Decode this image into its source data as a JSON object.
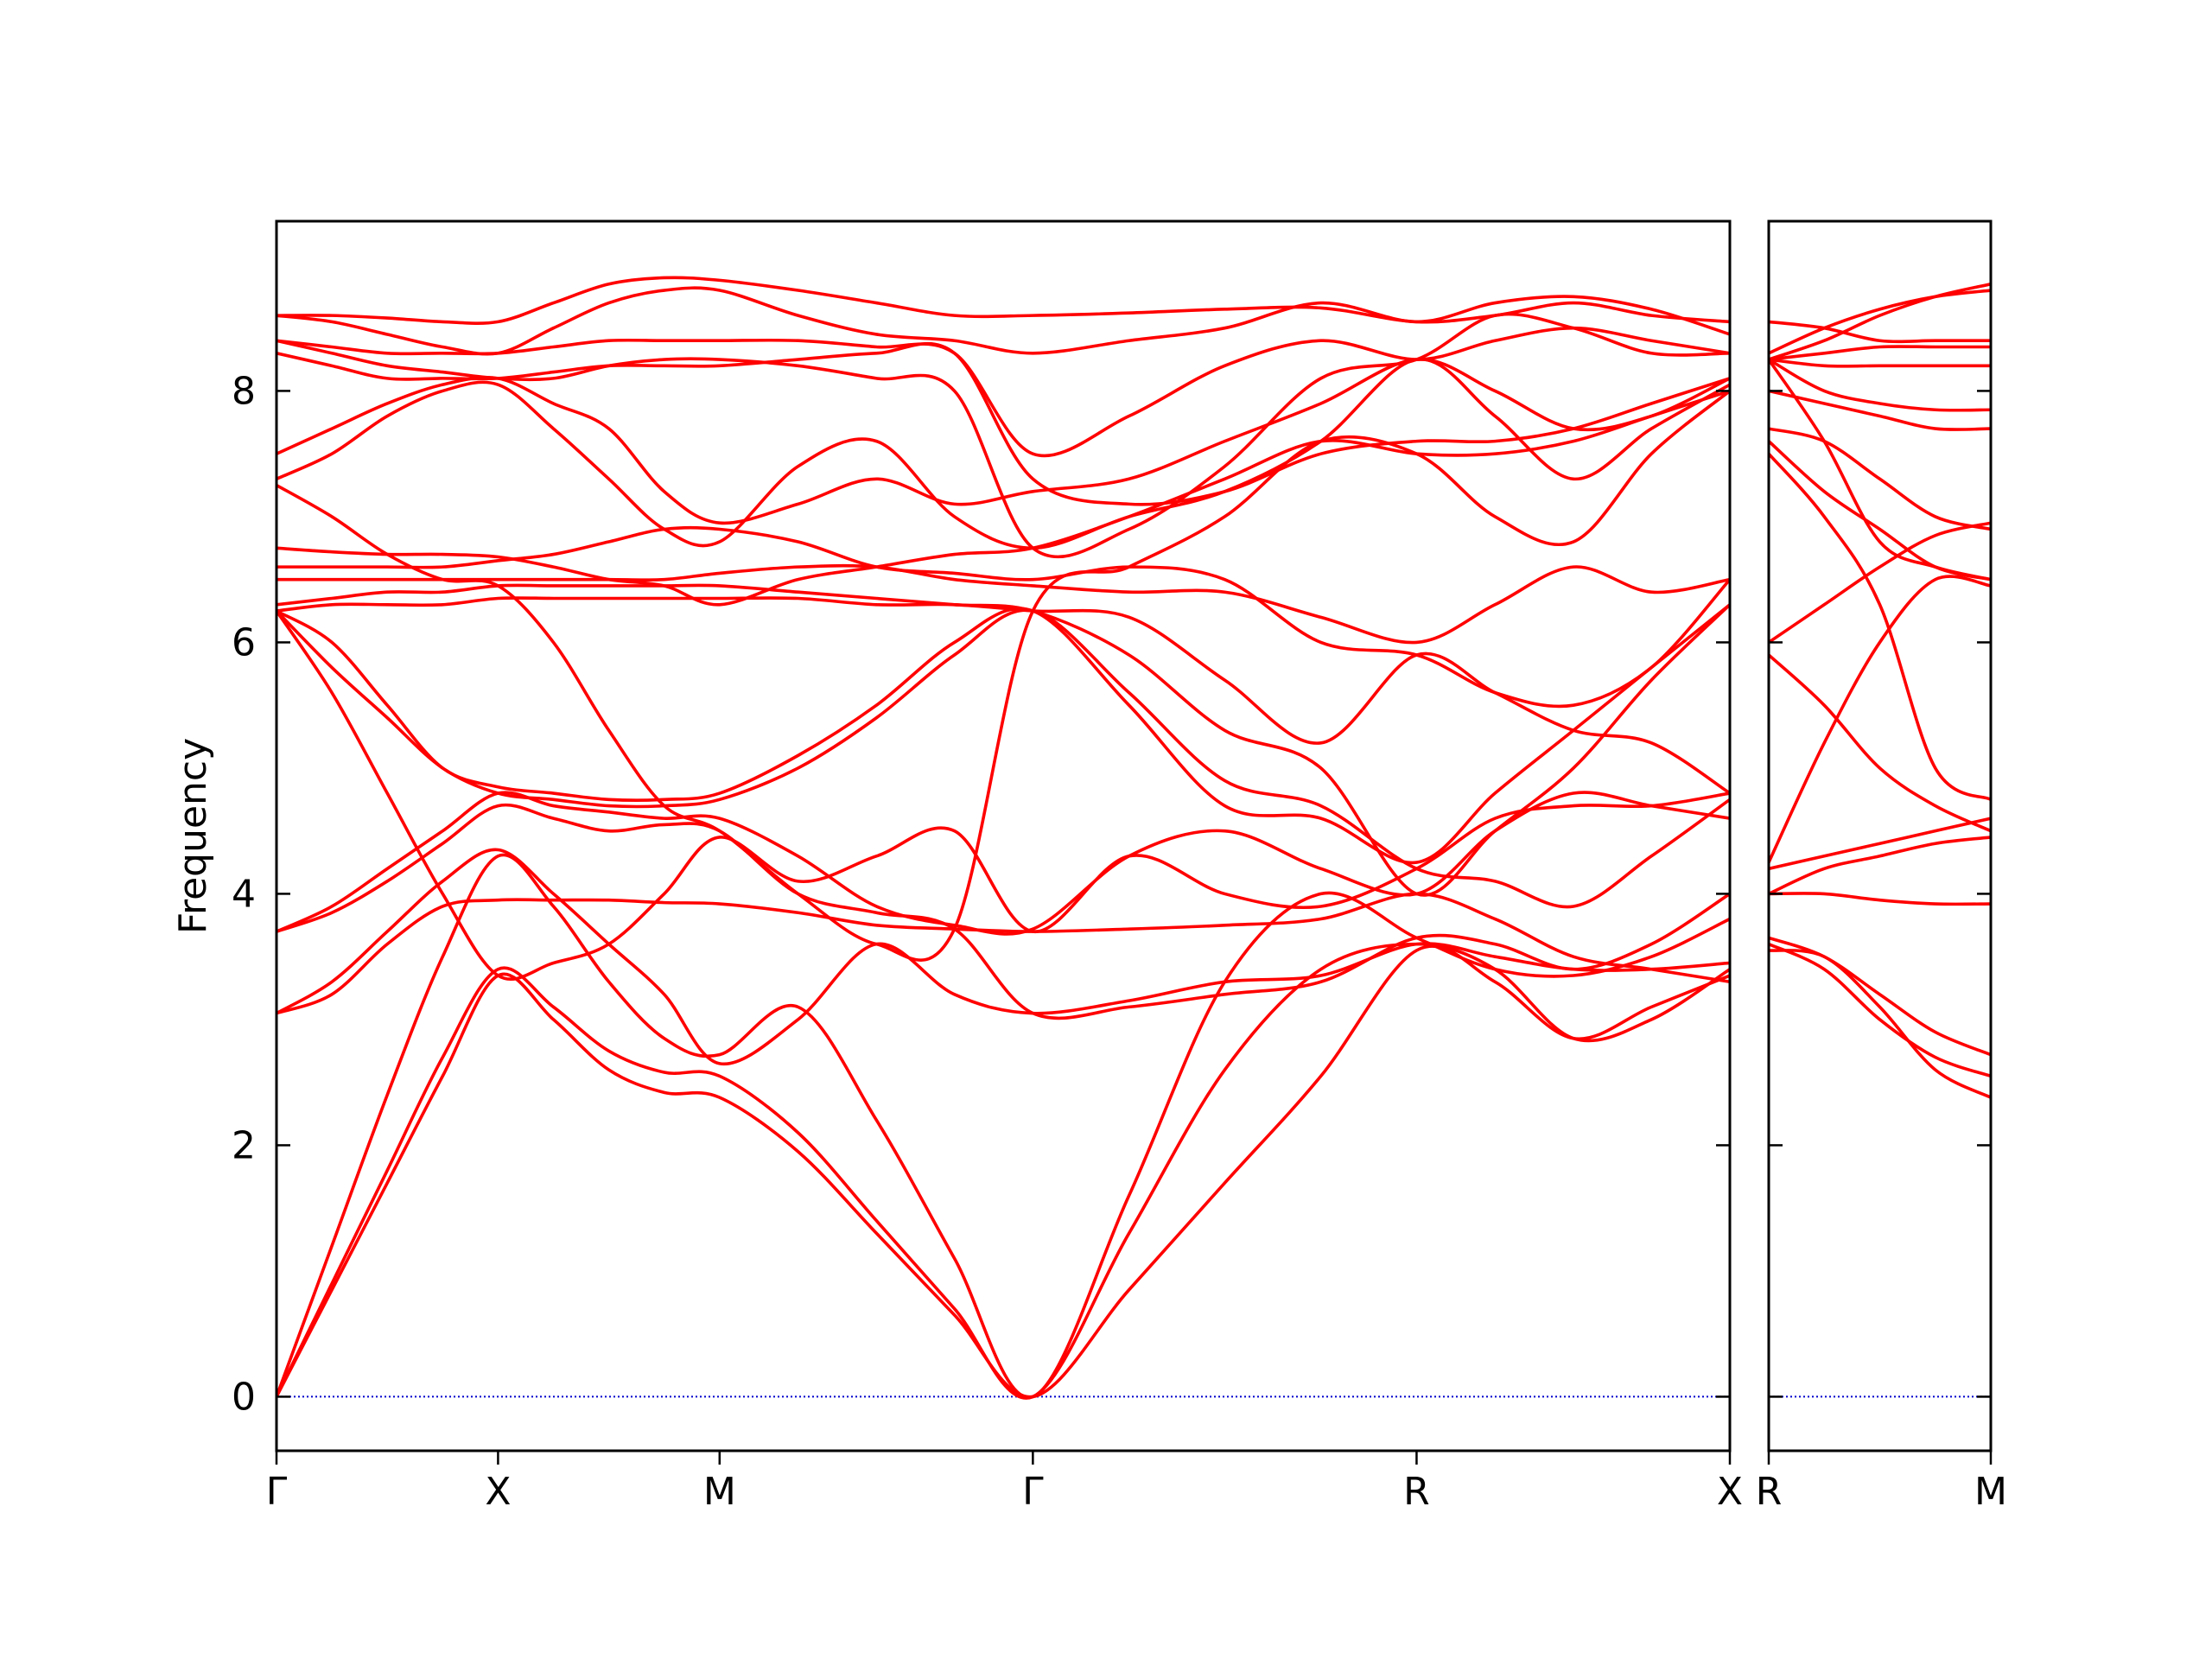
{
  "chart_data": [
    {
      "type": "line",
      "ylabel": "Frequency",
      "color": "#ff0000",
      "zero_line_color": "#0000cc",
      "ytick_labels": true,
      "xlim": [
        0,
        3.28
      ],
      "ylim": [
        -0.43,
        9.35
      ],
      "xticks": [
        {
          "value": 0,
          "label": "Γ"
        },
        {
          "value": 0.5,
          "label": "X"
        },
        {
          "value": 1.0,
          "label": "M"
        },
        {
          "value": 1.707,
          "label": "Γ"
        },
        {
          "value": 2.573,
          "label": "R"
        },
        {
          "value": 3.28,
          "label": "X"
        }
      ],
      "yticks": [
        0,
        2,
        4,
        6,
        8
      ],
      "x": [
        0,
        0.125,
        0.25,
        0.375,
        0.5,
        0.625,
        0.75,
        0.875,
        1.0,
        1.177,
        1.354,
        1.53,
        1.707,
        1.924,
        2.14,
        2.357,
        2.573,
        2.75,
        2.927,
        3.103,
        3.28
      ],
      "series": [
        {
          "values": [
            0,
            0.85,
            1.7,
            2.55,
            3.35,
            3.0,
            2.6,
            2.42,
            2.38,
            1.95,
            1.3,
            0.65,
            0,
            0.85,
            1.7,
            2.55,
            3.55,
            3.3,
            2.85,
            3.1,
            3.35
          ]
        },
        {
          "values": [
            0,
            0.9,
            1.8,
            2.7,
            3.4,
            3.1,
            2.75,
            2.58,
            2.55,
            2.1,
            1.4,
            0.7,
            0,
            1.3,
            2.6,
            3.4,
            3.6,
            3.4,
            2.85,
            3.0,
            3.4
          ]
        },
        {
          "values": [
            0,
            1.2,
            2.4,
            3.5,
            4.3,
            3.9,
            3.3,
            2.85,
            2.72,
            3.1,
            2.2,
            1.1,
            0,
            1.6,
            3.3,
            4.0,
            3.65,
            3.4,
            3.35,
            3.5,
            3.8
          ]
        },
        {
          "values": [
            3.05,
            3.2,
            3.6,
            3.9,
            3.95,
            3.95,
            3.95,
            3.93,
            3.92,
            3.85,
            3.75,
            3.72,
            3.7,
            3.72,
            3.75,
            3.8,
            4.0,
            3.8,
            3.5,
            3.4,
            3.3
          ]
        },
        {
          "values": [
            3.05,
            3.3,
            3.7,
            4.1,
            4.35,
            4.0,
            3.6,
            3.2,
            2.65,
            3.0,
            3.6,
            3.2,
            3.05,
            3.15,
            3.3,
            3.35,
            3.6,
            3.5,
            3.4,
            3.4,
            3.45
          ]
        },
        {
          "values": [
            3.7,
            3.85,
            4.1,
            4.4,
            4.7,
            4.6,
            4.5,
            4.55,
            4.5,
            4.0,
            3.85,
            3.72,
            3.05,
            3.1,
            3.2,
            3.3,
            3.65,
            3.6,
            3.4,
            3.6,
            4.0
          ]
        },
        {
          "values": [
            3.7,
            3.9,
            4.2,
            4.5,
            4.8,
            4.7,
            4.65,
            4.6,
            4.6,
            4.3,
            3.9,
            3.75,
            3.72,
            4.3,
            4.5,
            4.2,
            4.0,
            4.5,
            4.8,
            4.7,
            4.6
          ]
        },
        {
          "values": [
            6.25,
            5.6,
            4.8,
            4.0,
            3.35,
            3.45,
            3.6,
            4.0,
            4.45,
            4.1,
            4.3,
            4.5,
            3.7,
            4.3,
            4.0,
            3.9,
            4.2,
            4.6,
            4.7,
            4.7,
            4.8
          ]
        },
        {
          "values": [
            6.25,
            5.8,
            5.4,
            5.0,
            4.8,
            4.75,
            4.7,
            4.7,
            4.75,
            5.0,
            5.4,
            5.9,
            6.25,
            5.6,
            4.9,
            4.7,
            4.2,
            4.1,
            3.9,
            4.3,
            4.75
          ]
        },
        {
          "values": [
            6.25,
            6.0,
            5.5,
            5.0,
            4.85,
            4.8,
            4.75,
            4.75,
            4.8,
            5.1,
            5.5,
            6.0,
            6.25,
            5.5,
            4.7,
            4.6,
            4.25,
            4.8,
            5.3,
            5.8,
            6.3
          ]
        },
        {
          "values": [
            6.25,
            6.3,
            6.3,
            6.3,
            6.35,
            6.35,
            6.35,
            6.35,
            6.35,
            6.35,
            6.3,
            6.3,
            6.25,
            6.2,
            5.7,
            5.2,
            5.9,
            5.6,
            5.3,
            5.2,
            4.8
          ]
        },
        {
          "values": [
            6.3,
            6.35,
            6.4,
            6.4,
            6.45,
            6.45,
            6.45,
            6.45,
            6.45,
            6.4,
            6.35,
            6.3,
            6.25,
            5.9,
            5.3,
            5.0,
            4.0,
            4.5,
            5.0,
            5.7,
            6.3
          ]
        },
        {
          "values": [
            6.5,
            6.5,
            6.5,
            6.5,
            6.5,
            6.5,
            6.5,
            6.5,
            6.55,
            6.6,
            6.6,
            6.5,
            6.45,
            6.4,
            6.4,
            6.2,
            6.0,
            6.3,
            6.6,
            6.4,
            6.5
          ]
        },
        {
          "values": [
            6.6,
            6.6,
            6.6,
            6.6,
            6.65,
            6.7,
            6.8,
            6.9,
            6.9,
            6.8,
            6.6,
            6.55,
            6.5,
            6.6,
            6.5,
            6.0,
            5.9,
            5.6,
            5.5,
            5.8,
            6.5
          ]
        },
        {
          "values": [
            6.75,
            6.72,
            6.7,
            6.7,
            6.68,
            6.6,
            6.5,
            6.45,
            6.3,
            6.5,
            6.6,
            6.7,
            6.75,
            7.0,
            7.3,
            7.6,
            7.5,
            7.5,
            7.6,
            7.8,
            8.0
          ]
        },
        {
          "values": [
            7.25,
            7.0,
            6.7,
            6.5,
            6.45,
            6.0,
            5.3,
            4.7,
            4.5,
            4.0,
            3.6,
            3.72,
            6.25,
            6.6,
            7.0,
            7.6,
            7.5,
            7.0,
            6.8,
            7.5,
            8.0
          ]
        },
        {
          "values": [
            7.3,
            7.5,
            7.8,
            8.0,
            8.05,
            7.7,
            7.3,
            6.9,
            6.8,
            7.4,
            7.6,
            7.0,
            6.75,
            7.0,
            7.2,
            7.6,
            8.25,
            7.8,
            7.3,
            7.7,
            8.05
          ]
        },
        {
          "values": [
            7.5,
            7.7,
            7.9,
            8.05,
            8.1,
            7.9,
            7.7,
            7.2,
            6.95,
            7.1,
            7.3,
            7.1,
            7.2,
            7.3,
            7.6,
            7.9,
            8.25,
            8.0,
            7.7,
            7.8,
            8.1
          ]
        },
        {
          "values": [
            8.3,
            8.2,
            8.1,
            8.1,
            8.1,
            8.15,
            8.2,
            8.2,
            8.2,
            8.25,
            8.3,
            8.3,
            7.3,
            7.1,
            7.2,
            7.5,
            7.6,
            7.6,
            7.7,
            7.9,
            8.1
          ]
        },
        {
          "values": [
            8.4,
            8.35,
            8.3,
            8.3,
            8.3,
            8.35,
            8.4,
            8.4,
            8.4,
            8.4,
            8.35,
            8.3,
            7.5,
            7.8,
            8.2,
            8.4,
            8.25,
            8.4,
            8.5,
            8.4,
            8.3
          ]
        },
        {
          "values": [
            8.6,
            8.6,
            8.58,
            8.55,
            8.55,
            8.7,
            8.85,
            8.9,
            8.88,
            8.8,
            8.7,
            8.6,
            8.6,
            8.62,
            8.65,
            8.66,
            8.55,
            8.6,
            8.7,
            8.6,
            8.55
          ]
        },
        {
          "values": [
            8.6,
            8.55,
            8.45,
            8.35,
            8.3,
            8.5,
            8.7,
            8.8,
            8.8,
            8.6,
            8.45,
            8.4,
            8.3,
            8.4,
            8.5,
            8.7,
            8.55,
            8.7,
            8.75,
            8.65,
            8.45
          ]
        },
        {
          "values": [
            8.4,
            8.3,
            8.2,
            8.15,
            8.1,
            8.1,
            8.2,
            8.25,
            8.25,
            8.2,
            8.1,
            8.0,
            6.75,
            6.9,
            7.4,
            8.1,
            8.25,
            8.6,
            8.5,
            8.3,
            8.3
          ]
        }
      ]
    },
    {
      "type": "line",
      "color": "#ff0000",
      "zero_line_color": "#0000cc",
      "ytick_labels": false,
      "xlim": [
        0,
        0.5
      ],
      "ylim": [
        -0.43,
        9.35
      ],
      "xticks": [
        {
          "value": 0,
          "label": "R"
        },
        {
          "value": 0.5,
          "label": "M"
        }
      ],
      "yticks": [
        0,
        2,
        4,
        6,
        8
      ],
      "x": [
        0,
        0.125,
        0.25,
        0.375,
        0.5
      ],
      "series": [
        {
          "values": [
            3.55,
            3.5,
            3.1,
            2.6,
            2.38
          ]
        },
        {
          "values": [
            3.6,
            3.4,
            3.0,
            2.7,
            2.55
          ]
        },
        {
          "values": [
            3.65,
            3.5,
            3.2,
            2.9,
            2.72
          ]
        },
        {
          "values": [
            4.0,
            4.0,
            3.95,
            3.92,
            3.92
          ]
        },
        {
          "values": [
            4.0,
            4.2,
            4.3,
            4.4,
            4.45
          ]
        },
        {
          "values": [
            4.2,
            4.3,
            4.4,
            4.5,
            4.6
          ]
        },
        {
          "values": [
            4.25,
            5.2,
            6.0,
            6.5,
            6.45
          ]
        },
        {
          "values": [
            5.9,
            5.5,
            5.0,
            4.7,
            4.5
          ]
        },
        {
          "values": [
            6.0,
            6.3,
            6.6,
            6.85,
            6.95
          ]
        },
        {
          "values": [
            7.5,
            7.0,
            6.3,
            5.0,
            4.75
          ]
        },
        {
          "values": [
            7.6,
            7.2,
            6.9,
            6.6,
            6.5
          ]
        },
        {
          "values": [
            7.7,
            7.6,
            7.3,
            7.0,
            6.9
          ]
        },
        {
          "values": [
            8.25,
            7.6,
            6.8,
            6.6,
            6.5
          ]
        },
        {
          "values": [
            8.25,
            8.2,
            8.2,
            8.2,
            8.2
          ]
        },
        {
          "values": [
            8.25,
            8.3,
            8.35,
            8.35,
            8.35
          ]
        },
        {
          "values": [
            8.55,
            8.5,
            8.4,
            8.4,
            8.4
          ]
        },
        {
          "values": [
            8.3,
            8.5,
            8.65,
            8.75,
            8.8
          ]
        },
        {
          "values": [
            8.25,
            8.4,
            8.6,
            8.75,
            8.85
          ]
        },
        {
          "values": [
            8.0,
            7.9,
            7.8,
            7.7,
            7.7
          ]
        },
        {
          "values": [
            8.25,
            8.0,
            7.9,
            7.85,
            7.85
          ]
        }
      ]
    }
  ]
}
